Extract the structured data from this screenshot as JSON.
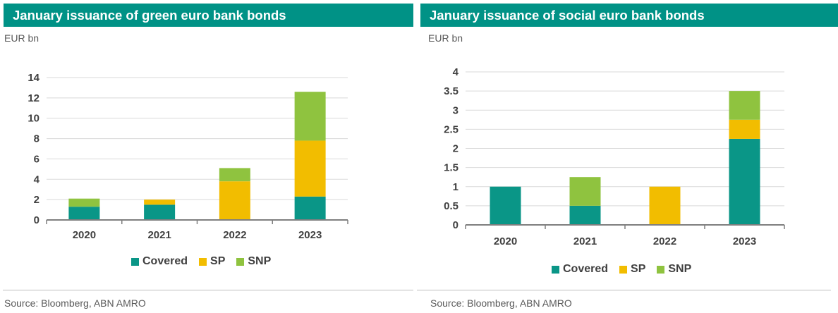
{
  "colors": {
    "header_bg": "#009286",
    "covered": "#0a9687",
    "sp": "#f2bd00",
    "snp": "#8fc33f",
    "grid": "#d9d9d9",
    "axis": "#7f7f7f"
  },
  "chart_data": [
    {
      "type": "bar",
      "stacked": true,
      "title": "January issuance of green euro bank bonds",
      "unit": "EUR bn",
      "source": "Source: Bloomberg, ABN AMRO",
      "categories": [
        "2020",
        "2021",
        "2022",
        "2023"
      ],
      "series": [
        {
          "name": "Covered",
          "values": [
            1.3,
            1.5,
            0,
            2.3
          ]
        },
        {
          "name": "SP",
          "values": [
            0,
            0.5,
            3.8,
            5.5
          ]
        },
        {
          "name": "SNP",
          "values": [
            0.8,
            0,
            1.3,
            4.8
          ]
        }
      ],
      "ylim": [
        0,
        14
      ],
      "yticks": [
        "0",
        "2",
        "4",
        "6",
        "8",
        "10",
        "12",
        "14"
      ],
      "legend_position": "bottom"
    },
    {
      "type": "bar",
      "stacked": true,
      "title": "January issuance of social euro bank bonds",
      "unit": "EUR bn",
      "source": "Source: Bloomberg, ABN AMRO",
      "categories": [
        "2020",
        "2021",
        "2022",
        "2023"
      ],
      "series": [
        {
          "name": "Covered",
          "values": [
            1.0,
            0.5,
            0,
            2.25
          ]
        },
        {
          "name": "SP",
          "values": [
            0,
            0,
            1.0,
            0.5
          ]
        },
        {
          "name": "SNP",
          "values": [
            0,
            0.75,
            0,
            0.75
          ]
        }
      ],
      "ylim": [
        0,
        4
      ],
      "yticks": [
        "0",
        "0.5",
        "1",
        "1.5",
        "2",
        "2.5",
        "3",
        "3.5",
        "4"
      ],
      "legend_position": "bottom"
    }
  ]
}
